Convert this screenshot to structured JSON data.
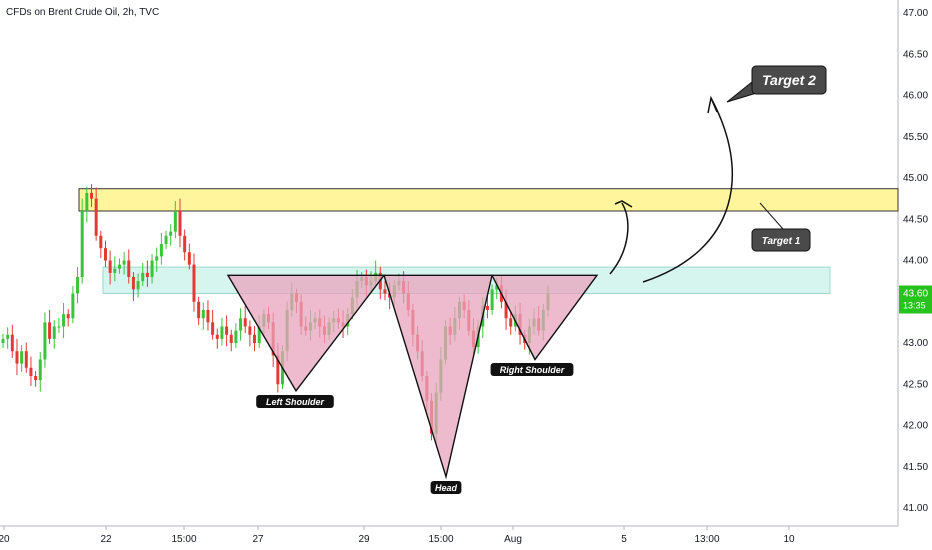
{
  "header": {
    "title": "CFDs on Brent Crude Oil, 2h, TVC"
  },
  "colors": {
    "up": "#26a69a",
    "up_candle": "#3bc43b",
    "down": "#e53935",
    "zone_yellow": "#fff59d",
    "zone_teal": "#d6f5ef",
    "pattern_fill": "#e8a3bc",
    "callout_bg": "#4a4a4a",
    "price_badge": "#27c21c"
  },
  "chart_data": {
    "type": "candlestick",
    "ylim": [
      40.9,
      47.1
    ],
    "y_ticks": [
      "47.00",
      "46.50",
      "46.00",
      "45.50",
      "45.00",
      "44.50",
      "44.00",
      "43.50",
      "43.00",
      "42.50",
      "42.00",
      "41.50",
      "41.00"
    ],
    "x_ticks": [
      "20",
      "22",
      "15:00",
      "27",
      "29",
      "15:00",
      "Aug",
      "5",
      "13:00",
      "10"
    ],
    "last_price": "43.60",
    "countdown": "13:35",
    "zones": [
      {
        "name": "resistance",
        "low": 44.6,
        "high": 44.87
      },
      {
        "name": "neckline",
        "low": 43.6,
        "high": 43.92
      }
    ],
    "pattern": {
      "shoulders": [
        {
          "label": "Left Shoulder",
          "top_left": 43.82,
          "top_right": 43.82,
          "bottom": 42.42
        },
        {
          "label": "Head",
          "top_left": 43.82,
          "top_right": 43.82,
          "bottom": 41.38
        },
        {
          "label": "Right Shoulder",
          "top_left": 43.82,
          "top_right": 43.82,
          "bottom": 42.8
        }
      ]
    },
    "annotations": [
      "Left Shoulder",
      "Head",
      "Right Shoulder",
      "Target 1",
      "Target 2"
    ],
    "candles_close_path": [
      43.05,
      43.1,
      42.9,
      42.75,
      42.9,
      42.7,
      42.6,
      42.55,
      42.8,
      43.25,
      43.05,
      43.2,
      43.2,
      43.35,
      43.3,
      43.6,
      43.8,
      44.6,
      44.82,
      44.75,
      44.3,
      44.15,
      44.0,
      43.85,
      43.9,
      43.95,
      44.0,
      43.8,
      43.65,
      43.75,
      43.85,
      43.8,
      44.0,
      44.05,
      44.2,
      44.3,
      44.35,
      44.6,
      44.3,
      44.1,
      43.95,
      43.5,
      43.3,
      43.4,
      43.25,
      43.1,
      43.05,
      43.2,
      43.1,
      43.0,
      43.15,
      43.3,
      43.2,
      43.1,
      43.0,
      43.2,
      43.35,
      43.25,
      42.85,
      42.5,
      42.9,
      43.4,
      43.6,
      43.5,
      43.2,
      43.15,
      43.25,
      43.3,
      43.2,
      43.1,
      43.25,
      43.3,
      43.25,
      43.2,
      43.35,
      43.55,
      43.75,
      43.8,
      43.7,
      43.75,
      43.85,
      43.65,
      43.6,
      43.55,
      43.7,
      43.75,
      43.6,
      43.4,
      43.1,
      42.9,
      42.6,
      42.3,
      41.9,
      42.4,
      42.8,
      43.2,
      43.1,
      43.3,
      43.5,
      43.4,
      43.15,
      42.95,
      43.2,
      43.45,
      43.4,
      43.65,
      43.7,
      43.5,
      43.3,
      43.2,
      43.35,
      43.1,
      43.0,
      43.2,
      43.3,
      43.15,
      43.4,
      43.6
    ]
  }
}
